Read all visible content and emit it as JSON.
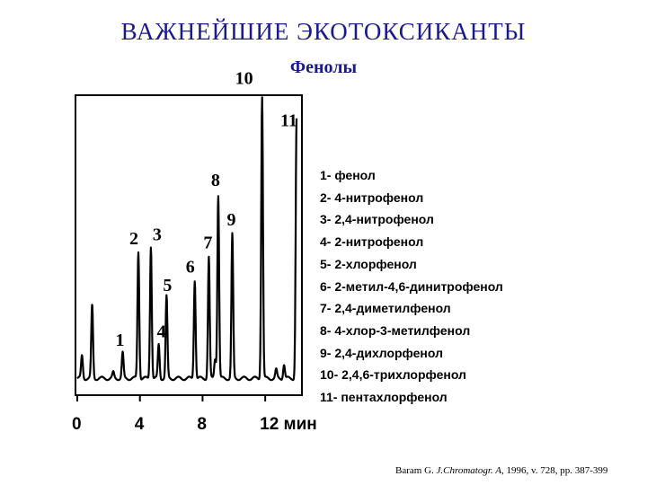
{
  "header": {
    "title": "ВАЖНЕЙШИЕ ЭКОТОКСИКАНТЫ",
    "subtitle": "Фенолы"
  },
  "chart_data": {
    "type": "line",
    "xlim": [
      0,
      14
    ],
    "x_ticks": [
      "0",
      "4",
      "8",
      "12 мин"
    ],
    "x_tick_values": [
      0,
      4,
      8,
      12
    ],
    "xlabel": "",
    "ylabel": "",
    "grid": false,
    "baseline": 0.05,
    "peaks": [
      {
        "label": "1",
        "time": 2.9,
        "height": 0.09
      },
      {
        "label": "2",
        "time": 3.9,
        "height": 0.45
      },
      {
        "label": "3",
        "time": 4.7,
        "height": 0.47
      },
      {
        "label": "4",
        "time": 5.2,
        "height": 0.12
      },
      {
        "label": "5",
        "time": 5.7,
        "height": 0.29
      },
      {
        "label": "6",
        "time": 7.5,
        "height": 0.35
      },
      {
        "label": "7",
        "time": 8.4,
        "height": 0.43
      },
      {
        "label": "8",
        "time": 9.0,
        "height": 0.65
      },
      {
        "label": "9",
        "time": 9.9,
        "height": 0.51
      },
      {
        "label": "10",
        "time": 11.8,
        "height": 1.0
      },
      {
        "label": "11",
        "time": 14.0,
        "height": 0.92
      }
    ],
    "extra_peaks": [
      {
        "time": 0.3,
        "height": 0.08
      },
      {
        "time": 0.95,
        "height": 0.26
      },
      {
        "time": 2.3,
        "height": 0.02
      },
      {
        "time": 8.8,
        "height": 0.07
      },
      {
        "time": 12.7,
        "height": 0.03
      },
      {
        "time": 13.2,
        "height": 0.05
      }
    ]
  },
  "legend": {
    "items": [
      "1- фенол",
      "2- 4-нитрофенол",
      "3- 2,4-нитрофенол",
      "4- 2-нитрофенол",
      "5- 2-хлорфенол",
      "6- 2-метил-4,6-динитрофенол",
      "7- 2,4-диметилфенол",
      "8- 4-хлор-3-метилфенол",
      "9- 2,4-дихлорфенол",
      "10- 2,4,6-трихлорфенол",
      "11- пентахлорфенол"
    ]
  },
  "citation": {
    "author": "Baram G.",
    "journal": "J.Chromatogr. A,",
    "details": "1996, v. 728, pp. 387-399"
  }
}
